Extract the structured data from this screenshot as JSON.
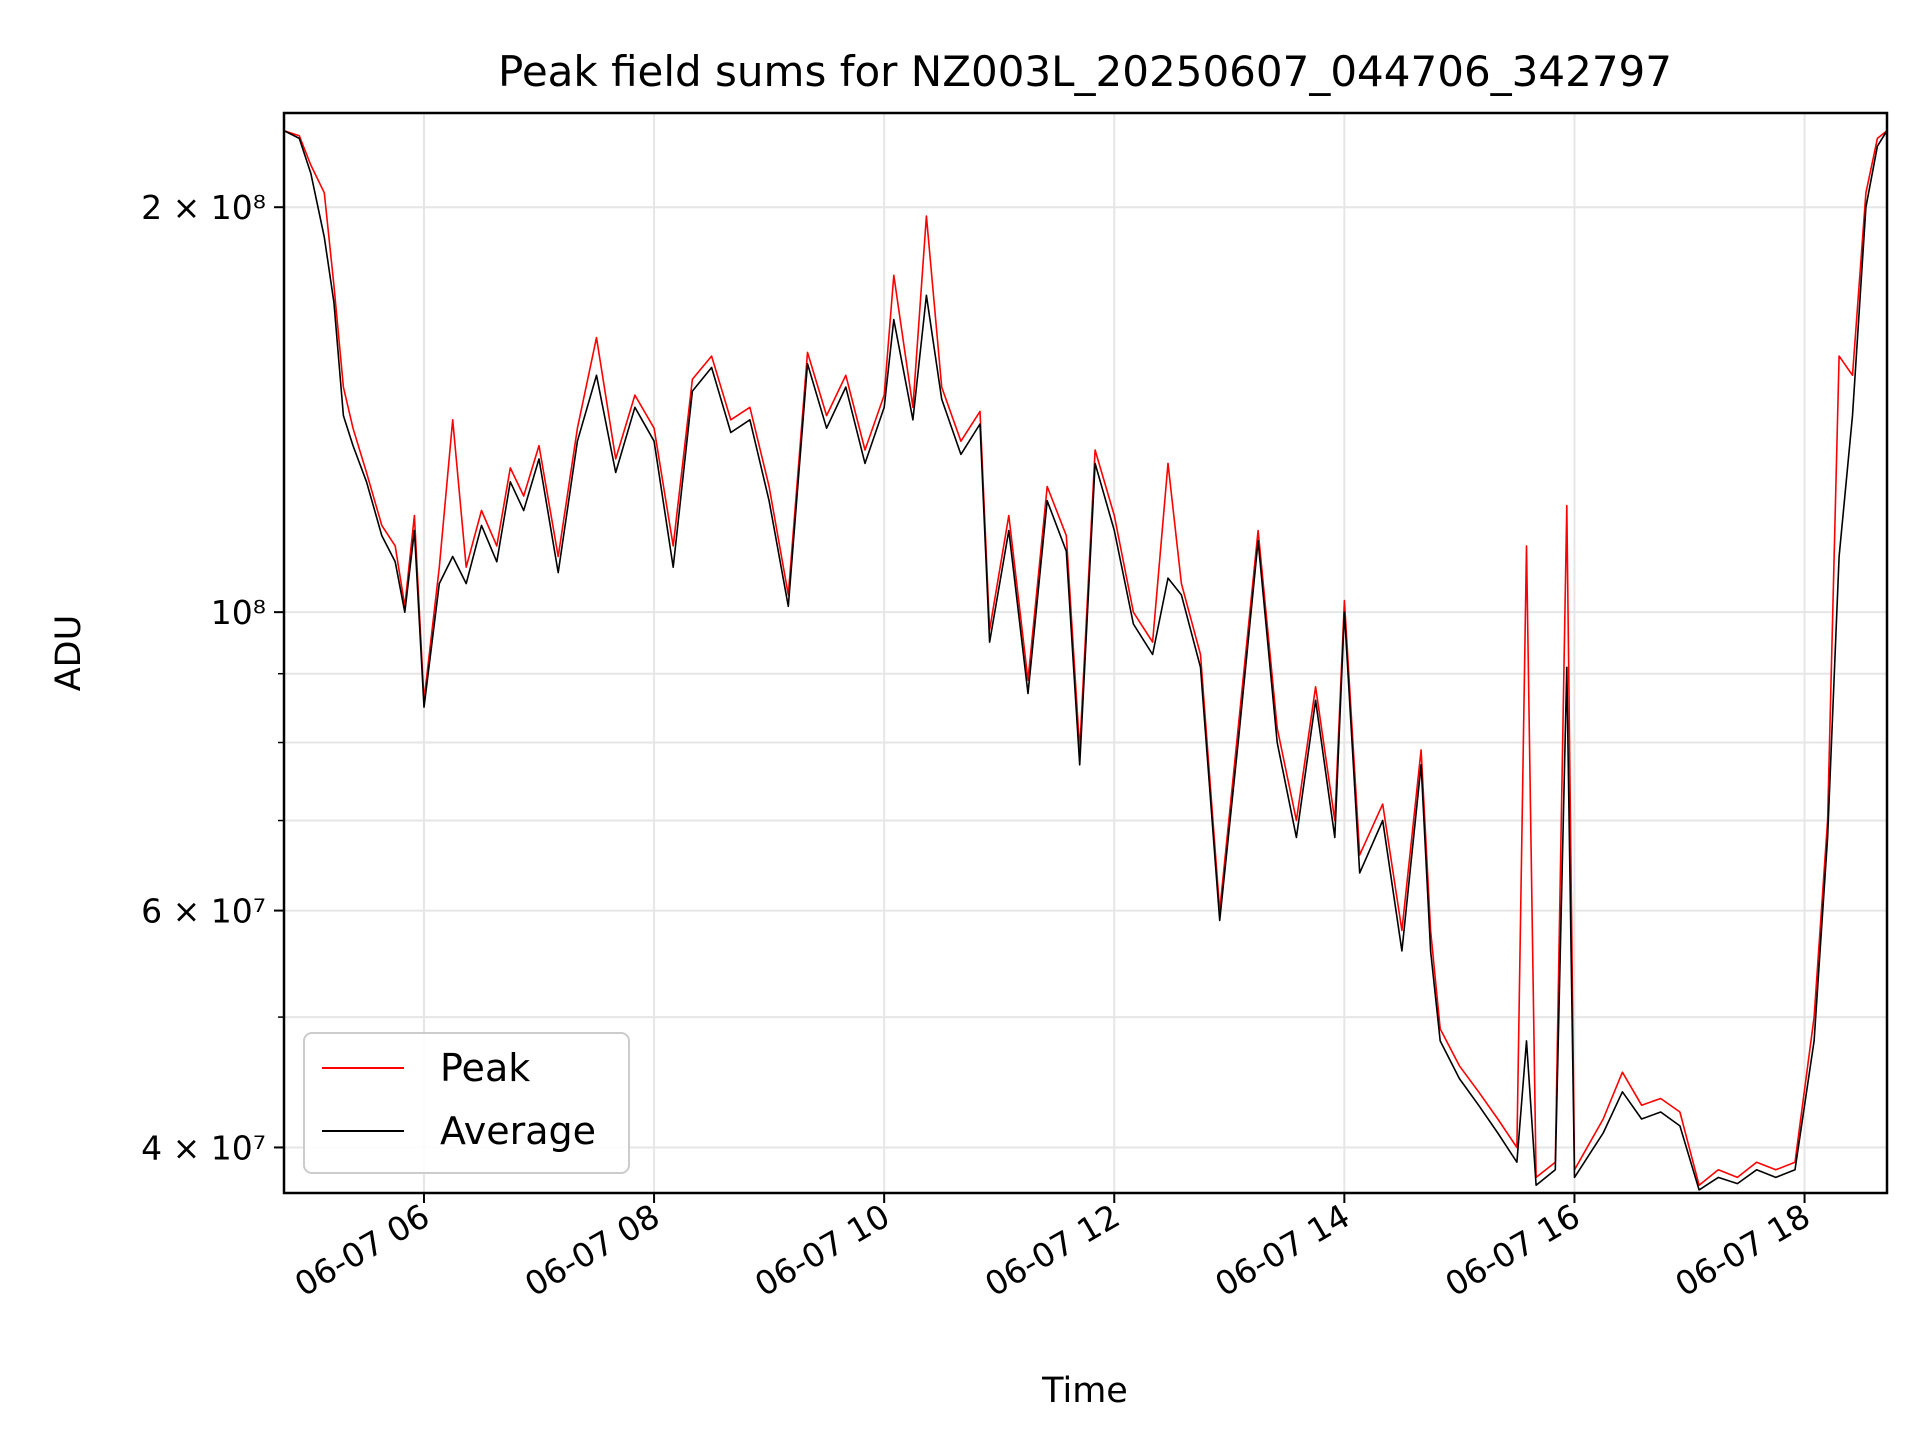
{
  "chart_data": {
    "type": "line",
    "title": "Peak field sums for NZ003L_20250607_044706_342797",
    "xlabel": "Time",
    "ylabel": "ADU",
    "y_scale": "log",
    "ylim": [
      37000000,
      235000000
    ],
    "xlim": [
      "2025-06-07 04:47",
      "2025-06-07 18:43"
    ],
    "grid": true,
    "legend_position": "lower-left",
    "x_ticks": [
      {
        "t": "2025-06-07 06:00",
        "label": "06-07 06"
      },
      {
        "t": "2025-06-07 08:00",
        "label": "06-07 08"
      },
      {
        "t": "2025-06-07 10:00",
        "label": "06-07 10"
      },
      {
        "t": "2025-06-07 12:00",
        "label": "06-07 12"
      },
      {
        "t": "2025-06-07 14:00",
        "label": "06-07 14"
      },
      {
        "t": "2025-06-07 16:00",
        "label": "06-07 16"
      },
      {
        "t": "2025-06-07 18:00",
        "label": "06-07 18"
      }
    ],
    "y_major_ticks": [
      {
        "v": 40000000,
        "label": "4 × 10⁷"
      },
      {
        "v": 60000000,
        "label": "6 × 10⁷"
      },
      {
        "v": 100000000,
        "label": "10⁸"
      },
      {
        "v": 200000000,
        "label": "2 × 10⁸"
      }
    ],
    "y_minor_ticks": [
      50000000,
      70000000,
      80000000,
      90000000
    ],
    "series": [
      {
        "name": "Peak",
        "color": "#ff0000",
        "points": [
          [
            "2025-06-07 04:47",
            228000000
          ],
          [
            "2025-06-07 04:55",
            226000000
          ],
          [
            "2025-06-07 05:01",
            215000000
          ],
          [
            "2025-06-07 05:08",
            205000000
          ],
          [
            "2025-06-07 05:13",
            175000000
          ],
          [
            "2025-06-07 05:18",
            147000000
          ],
          [
            "2025-06-07 05:23",
            137000000
          ],
          [
            "2025-06-07 05:30",
            127000000
          ],
          [
            "2025-06-07 05:38",
            116000000
          ],
          [
            "2025-06-07 05:45",
            112000000
          ],
          [
            "2025-06-07 05:50",
            101000000
          ],
          [
            "2025-06-07 05:55",
            118000000
          ],
          [
            "2025-06-07 06:00",
            86000000
          ],
          [
            "2025-06-07 06:08",
            108000000
          ],
          [
            "2025-06-07 06:15",
            139000000
          ],
          [
            "2025-06-07 06:22",
            108000000
          ],
          [
            "2025-06-07 06:30",
            119000000
          ],
          [
            "2025-06-07 06:38",
            112000000
          ],
          [
            "2025-06-07 06:45",
            128000000
          ],
          [
            "2025-06-07 06:52",
            122000000
          ],
          [
            "2025-06-07 07:00",
            133000000
          ],
          [
            "2025-06-07 07:10",
            110000000
          ],
          [
            "2025-06-07 07:20",
            137000000
          ],
          [
            "2025-06-07 07:30",
            160000000
          ],
          [
            "2025-06-07 07:40",
            130000000
          ],
          [
            "2025-06-07 07:50",
            145000000
          ],
          [
            "2025-06-07 08:00",
            137000000
          ],
          [
            "2025-06-07 08:10",
            112000000
          ],
          [
            "2025-06-07 08:20",
            149000000
          ],
          [
            "2025-06-07 08:30",
            155000000
          ],
          [
            "2025-06-07 08:40",
            139000000
          ],
          [
            "2025-06-07 08:50",
            142000000
          ],
          [
            "2025-06-07 09:00",
            124000000
          ],
          [
            "2025-06-07 09:10",
            103000000
          ],
          [
            "2025-06-07 09:20",
            156000000
          ],
          [
            "2025-06-07 09:30",
            140000000
          ],
          [
            "2025-06-07 09:40",
            150000000
          ],
          [
            "2025-06-07 09:50",
            132000000
          ],
          [
            "2025-06-07 10:00",
            145000000
          ],
          [
            "2025-06-07 10:05",
            178000000
          ],
          [
            "2025-06-07 10:15",
            142000000
          ],
          [
            "2025-06-07 10:22",
            197000000
          ],
          [
            "2025-06-07 10:30",
            147000000
          ],
          [
            "2025-06-07 10:40",
            134000000
          ],
          [
            "2025-06-07 10:50",
            141000000
          ],
          [
            "2025-06-07 10:55",
            97000000
          ],
          [
            "2025-06-07 11:05",
            118000000
          ],
          [
            "2025-06-07 11:15",
            89000000
          ],
          [
            "2025-06-07 11:25",
            124000000
          ],
          [
            "2025-06-07 11:35",
            114000000
          ],
          [
            "2025-06-07 11:42",
            79000000
          ],
          [
            "2025-06-07 11:50",
            132000000
          ],
          [
            "2025-06-07 12:00",
            118000000
          ],
          [
            "2025-06-07 12:10",
            100000000
          ],
          [
            "2025-06-07 12:20",
            95000000
          ],
          [
            "2025-06-07 12:28",
            129000000
          ],
          [
            "2025-06-07 12:35",
            105000000
          ],
          [
            "2025-06-07 12:45",
            93000000
          ],
          [
            "2025-06-07 12:55",
            60000000
          ],
          [
            "2025-06-07 13:05",
            83000000
          ],
          [
            "2025-06-07 13:15",
            115000000
          ],
          [
            "2025-06-07 13:25",
            82000000
          ],
          [
            "2025-06-07 13:35",
            70000000
          ],
          [
            "2025-06-07 13:45",
            88000000
          ],
          [
            "2025-06-07 13:55",
            70000000
          ],
          [
            "2025-06-07 14:00",
            102000000
          ],
          [
            "2025-06-07 14:08",
            66000000
          ],
          [
            "2025-06-07 14:20",
            72000000
          ],
          [
            "2025-06-07 14:30",
            58000000
          ],
          [
            "2025-06-07 14:40",
            79000000
          ],
          [
            "2025-06-07 14:45",
            58000000
          ],
          [
            "2025-06-07 14:50",
            49000000
          ],
          [
            "2025-06-07 15:00",
            46000000
          ],
          [
            "2025-06-07 15:10",
            44000000
          ],
          [
            "2025-06-07 15:20",
            42000000
          ],
          [
            "2025-06-07 15:30",
            40000000
          ],
          [
            "2025-06-07 15:35",
            112000000
          ],
          [
            "2025-06-07 15:40",
            38000000
          ],
          [
            "2025-06-07 15:50",
            39000000
          ],
          [
            "2025-06-07 15:56",
            120000000
          ],
          [
            "2025-06-07 16:00",
            38500000
          ],
          [
            "2025-06-07 16:15",
            42000000
          ],
          [
            "2025-06-07 16:25",
            45500000
          ],
          [
            "2025-06-07 16:35",
            43000000
          ],
          [
            "2025-06-07 16:45",
            43500000
          ],
          [
            "2025-06-07 16:55",
            42500000
          ],
          [
            "2025-06-07 17:05",
            37500000
          ],
          [
            "2025-06-07 17:15",
            38500000
          ],
          [
            "2025-06-07 17:25",
            38000000
          ],
          [
            "2025-06-07 17:35",
            39000000
          ],
          [
            "2025-06-07 17:45",
            38500000
          ],
          [
            "2025-06-07 17:55",
            39000000
          ],
          [
            "2025-06-07 18:05",
            50000000
          ],
          [
            "2025-06-07 18:12",
            70000000
          ],
          [
            "2025-06-07 18:18",
            155000000
          ],
          [
            "2025-06-07 18:25",
            150000000
          ],
          [
            "2025-06-07 18:32",
            205000000
          ],
          [
            "2025-06-07 18:38",
            225000000
          ],
          [
            "2025-06-07 18:43",
            228000000
          ]
        ]
      },
      {
        "name": "Average",
        "color": "#000000",
        "points": [
          [
            "2025-06-07 04:47",
            228000000
          ],
          [
            "2025-06-07 04:55",
            225000000
          ],
          [
            "2025-06-07 05:01",
            212000000
          ],
          [
            "2025-06-07 05:08",
            190000000
          ],
          [
            "2025-06-07 05:13",
            170000000
          ],
          [
            "2025-06-07 05:18",
            140000000
          ],
          [
            "2025-06-07 05:23",
            133000000
          ],
          [
            "2025-06-07 05:30",
            125000000
          ],
          [
            "2025-06-07 05:38",
            114000000
          ],
          [
            "2025-06-07 05:45",
            109000000
          ],
          [
            "2025-06-07 05:50",
            100000000
          ],
          [
            "2025-06-07 05:55",
            115000000
          ],
          [
            "2025-06-07 06:00",
            85000000
          ],
          [
            "2025-06-07 06:08",
            105000000
          ],
          [
            "2025-06-07 06:15",
            110000000
          ],
          [
            "2025-06-07 06:22",
            105000000
          ],
          [
            "2025-06-07 06:30",
            116000000
          ],
          [
            "2025-06-07 06:38",
            109000000
          ],
          [
            "2025-06-07 06:45",
            125000000
          ],
          [
            "2025-06-07 06:52",
            119000000
          ],
          [
            "2025-06-07 07:00",
            130000000
          ],
          [
            "2025-06-07 07:10",
            107000000
          ],
          [
            "2025-06-07 07:20",
            134000000
          ],
          [
            "2025-06-07 07:30",
            150000000
          ],
          [
            "2025-06-07 07:40",
            127000000
          ],
          [
            "2025-06-07 07:50",
            142000000
          ],
          [
            "2025-06-07 08:00",
            134000000
          ],
          [
            "2025-06-07 08:10",
            108000000
          ],
          [
            "2025-06-07 08:20",
            146000000
          ],
          [
            "2025-06-07 08:30",
            152000000
          ],
          [
            "2025-06-07 08:40",
            136000000
          ],
          [
            "2025-06-07 08:50",
            139000000
          ],
          [
            "2025-06-07 09:00",
            121000000
          ],
          [
            "2025-06-07 09:10",
            101000000
          ],
          [
            "2025-06-07 09:20",
            153000000
          ],
          [
            "2025-06-07 09:30",
            137000000
          ],
          [
            "2025-06-07 09:40",
            147000000
          ],
          [
            "2025-06-07 09:50",
            129000000
          ],
          [
            "2025-06-07 10:00",
            142000000
          ],
          [
            "2025-06-07 10:05",
            165000000
          ],
          [
            "2025-06-07 10:15",
            139000000
          ],
          [
            "2025-06-07 10:22",
            172000000
          ],
          [
            "2025-06-07 10:30",
            144000000
          ],
          [
            "2025-06-07 10:40",
            131000000
          ],
          [
            "2025-06-07 10:50",
            138000000
          ],
          [
            "2025-06-07 10:55",
            95000000
          ],
          [
            "2025-06-07 11:05",
            115000000
          ],
          [
            "2025-06-07 11:15",
            87000000
          ],
          [
            "2025-06-07 11:25",
            121000000
          ],
          [
            "2025-06-07 11:35",
            111000000
          ],
          [
            "2025-06-07 11:42",
            77000000
          ],
          [
            "2025-06-07 11:50",
            129000000
          ],
          [
            "2025-06-07 12:00",
            115000000
          ],
          [
            "2025-06-07 12:10",
            98000000
          ],
          [
            "2025-06-07 12:20",
            93000000
          ],
          [
            "2025-06-07 12:28",
            106000000
          ],
          [
            "2025-06-07 12:35",
            103000000
          ],
          [
            "2025-06-07 12:45",
            91000000
          ],
          [
            "2025-06-07 12:55",
            59000000
          ],
          [
            "2025-06-07 13:05",
            81000000
          ],
          [
            "2025-06-07 13:15",
            113000000
          ],
          [
            "2025-06-07 13:25",
            80000000
          ],
          [
            "2025-06-07 13:35",
            68000000
          ],
          [
            "2025-06-07 13:45",
            86000000
          ],
          [
            "2025-06-07 13:55",
            68000000
          ],
          [
            "2025-06-07 14:00",
            100000000
          ],
          [
            "2025-06-07 14:08",
            64000000
          ],
          [
            "2025-06-07 14:20",
            70000000
          ],
          [
            "2025-06-07 14:30",
            56000000
          ],
          [
            "2025-06-07 14:40",
            77000000
          ],
          [
            "2025-06-07 14:45",
            56000000
          ],
          [
            "2025-06-07 14:50",
            48000000
          ],
          [
            "2025-06-07 15:00",
            45000000
          ],
          [
            "2025-06-07 15:10",
            43000000
          ],
          [
            "2025-06-07 15:20",
            41000000
          ],
          [
            "2025-06-07 15:30",
            39000000
          ],
          [
            "2025-06-07 15:35",
            48000000
          ],
          [
            "2025-06-07 15:40",
            37500000
          ],
          [
            "2025-06-07 15:50",
            38500000
          ],
          [
            "2025-06-07 15:56",
            91000000
          ],
          [
            "2025-06-07 16:00",
            38000000
          ],
          [
            "2025-06-07 16:15",
            41000000
          ],
          [
            "2025-06-07 16:25",
            44000000
          ],
          [
            "2025-06-07 16:35",
            42000000
          ],
          [
            "2025-06-07 16:45",
            42500000
          ],
          [
            "2025-06-07 16:55",
            41500000
          ],
          [
            "2025-06-07 17:05",
            37200000
          ],
          [
            "2025-06-07 17:15",
            38000000
          ],
          [
            "2025-06-07 17:25",
            37600000
          ],
          [
            "2025-06-07 17:35",
            38500000
          ],
          [
            "2025-06-07 17:45",
            38000000
          ],
          [
            "2025-06-07 17:55",
            38500000
          ],
          [
            "2025-06-07 18:05",
            48000000
          ],
          [
            "2025-06-07 18:12",
            68000000
          ],
          [
            "2025-06-07 18:18",
            110000000
          ],
          [
            "2025-06-07 18:25",
            140000000
          ],
          [
            "2025-06-07 18:32",
            200000000
          ],
          [
            "2025-06-07 18:38",
            222000000
          ],
          [
            "2025-06-07 18:43",
            228000000
          ]
        ]
      }
    ]
  }
}
